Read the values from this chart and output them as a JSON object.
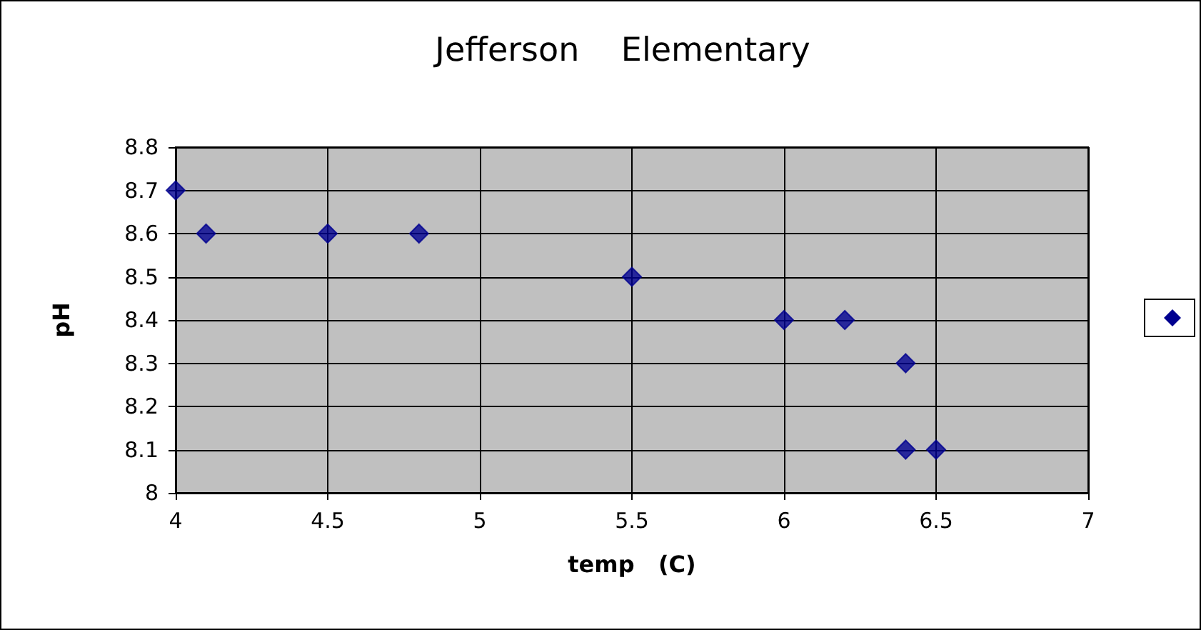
{
  "chart_data": {
    "type": "scatter",
    "title": "Jefferson    Elementary",
    "xlabel": "temp   (C)",
    "ylabel": "pH",
    "x": [
      4,
      4.1,
      4.5,
      4.8,
      5.5,
      6,
      6.2,
      6.4,
      6.4,
      6.5
    ],
    "series": [
      {
        "color": "#000090",
        "values": [
          8.7,
          8.6,
          8.6,
          8.6,
          8.5,
          8.4,
          8.4,
          8.3,
          8.1,
          8.1
        ]
      }
    ],
    "xlim": [
      4,
      7
    ],
    "xticks": [
      4,
      4.5,
      5,
      5.5,
      6,
      6.5,
      7
    ],
    "ylim": [
      8,
      8.8
    ],
    "yticks": [
      8,
      8.1,
      8.2,
      8.3,
      8.4,
      8.5,
      8.6,
      8.7,
      8.8
    ],
    "grid": true,
    "marker": "diamond"
  }
}
